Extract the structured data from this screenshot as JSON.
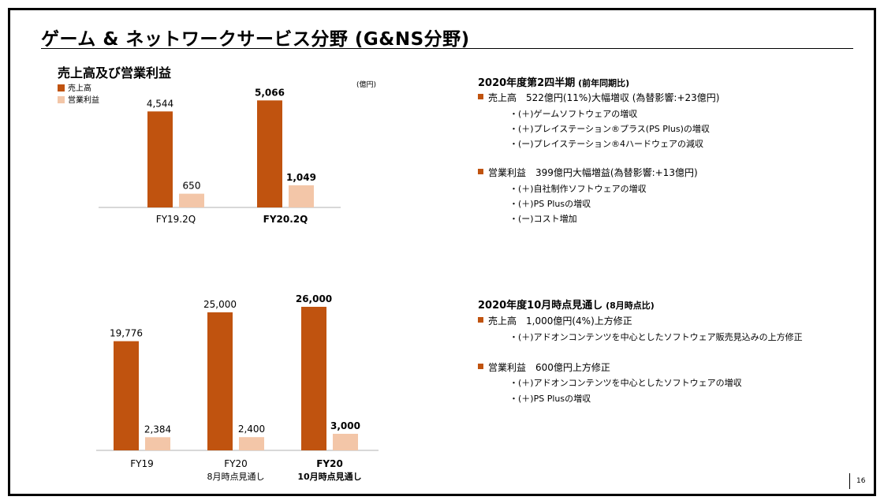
{
  "page": {
    "title": "ゲーム & ネットワークサービス分野 (G&NS分野)",
    "page_number": "16"
  },
  "colors": {
    "revenue": "#c0530f",
    "profit": "#f3c6a8",
    "axis": "#b0b0b0"
  },
  "top_chart": {
    "section_label": "売上高及び営業利益",
    "legend": [
      "売上高",
      "営業利益"
    ],
    "unit": "(億円)"
  },
  "chart_data": [
    {
      "type": "bar",
      "title": "売上高及び営業利益",
      "unit": "(億円)",
      "categories": [
        {
          "label": "FY19.2Q",
          "sub": "",
          "bold": false
        },
        {
          "label": "FY20.2Q",
          "sub": "",
          "bold": true
        }
      ],
      "series": [
        {
          "name": "売上高",
          "values": [
            4544,
            5066
          ],
          "labels": [
            "4,544",
            "5,066"
          ]
        },
        {
          "name": "営業利益",
          "values": [
            650,
            1049
          ],
          "labels": [
            "650",
            "1,049"
          ]
        }
      ],
      "ylim": [
        0,
        5600
      ],
      "grid": false,
      "legend_position": "top-left"
    },
    {
      "type": "bar",
      "title": "",
      "categories": [
        {
          "label": "FY19",
          "sub": "",
          "bold": false
        },
        {
          "label": "FY20",
          "sub": "8月時点見通し",
          "bold": false
        },
        {
          "label": "FY20",
          "sub": "10月時点見通し",
          "bold": true
        }
      ],
      "series": [
        {
          "name": "売上高",
          "values": [
            19776,
            25000,
            26000
          ],
          "labels": [
            "19,776",
            "25,000",
            "26,000"
          ]
        },
        {
          "name": "営業利益",
          "values": [
            2384,
            2400,
            3000
          ],
          "labels": [
            "2,384",
            "2,400",
            "3,000"
          ]
        }
      ],
      "ylim": [
        0,
        28000
      ],
      "grid": false
    }
  ],
  "right_panel": {
    "q2": {
      "heading": "2020年度第2四半期",
      "heading_sub": " (前年同期比)",
      "items": [
        {
          "text": "売上高　522億円(11%)大幅増収 (為替影響:+23億円)",
          "details": [
            "・(＋)ゲームソフトウェアの増収",
            "・(＋)プレイステーション®プラス(PS Plus)の増収",
            "・(ー)プレイステーション®4ハードウェアの減収"
          ]
        },
        {
          "text": "営業利益　399億円大幅増益(為替影響:+13億円)",
          "details": [
            "・(＋)自社制作ソフトウェアの増収",
            "・(＋)PS Plusの増収",
            "・(ー)コスト増加"
          ]
        }
      ]
    },
    "oct": {
      "heading": "2020年度10月時点見通し",
      "heading_sub": " (8月時点比)",
      "items": [
        {
          "text": "売上高　1,000億円(4%)上方修正",
          "details": [
            "・(＋)アドオンコンテンツを中心としたソフトウェア販売見込みの上方修正"
          ]
        },
        {
          "text": "営業利益　600億円上方修正",
          "details": [
            "・(＋)アドオンコンテンツを中心としたソフトウェアの増収",
            "・(＋)PS Plusの増収"
          ]
        }
      ]
    }
  }
}
